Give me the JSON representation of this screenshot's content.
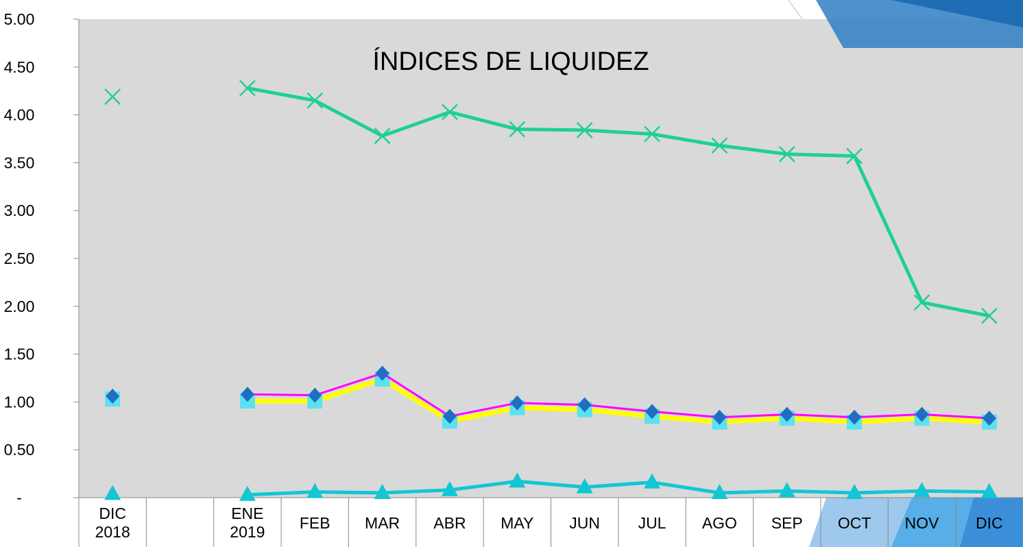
{
  "chart_data": {
    "type": "line",
    "title": "ÍNDICES DE LIQUIDEZ",
    "categories": [
      "DIC\n2018",
      null,
      "ENE\n2019",
      "FEB",
      "MAR",
      "ABR",
      "MAY",
      "JUN",
      "JUL",
      "AGO",
      "SEP",
      "OCT",
      "NOV",
      "DIC"
    ],
    "ylim": [
      0,
      5
    ],
    "yticks": [
      {
        "value": 0,
        "label": "-"
      },
      {
        "value": 0.5,
        "label": "0.50"
      },
      {
        "value": 1,
        "label": "1.00"
      },
      {
        "value": 1.5,
        "label": "1.50"
      },
      {
        "value": 2,
        "label": "2.00"
      },
      {
        "value": 2.5,
        "label": "2.50"
      },
      {
        "value": 3,
        "label": "3.00"
      },
      {
        "value": 3.5,
        "label": "3.50"
      },
      {
        "value": 4,
        "label": "4.00"
      },
      {
        "value": 4.5,
        "label": "4.50"
      },
      {
        "value": 5,
        "label": "5.00"
      }
    ],
    "grid": false,
    "series": [
      {
        "color": "#1fcf97",
        "marker": "x",
        "marker_color": "#1fcf97",
        "width": 5,
        "values": [
          4.19,
          null,
          4.28,
          4.15,
          3.78,
          4.03,
          3.85,
          3.84,
          3.8,
          3.68,
          3.59,
          3.57,
          2.04,
          1.9
        ]
      },
      {
        "color": "#ffff00",
        "marker": "square",
        "marker_color": "#5ce1f0",
        "width": 7,
        "values": [
          1.03,
          null,
          1.01,
          1.01,
          1.24,
          0.8,
          0.94,
          0.92,
          0.85,
          0.79,
          0.83,
          0.79,
          0.83,
          0.79
        ]
      },
      {
        "color": "#ff00ff",
        "marker": "diamond",
        "marker_color": "#1f6fc0",
        "width": 3,
        "values": [
          1.06,
          null,
          1.08,
          1.07,
          1.3,
          0.85,
          0.99,
          0.97,
          0.9,
          0.84,
          0.87,
          0.84,
          0.87,
          0.83
        ]
      },
      {
        "color": "#12c6d4",
        "marker": "triangle",
        "marker_color": "#12c6d4",
        "width": 5,
        "values": [
          0.04,
          null,
          0.03,
          0.06,
          0.05,
          0.08,
          0.17,
          0.11,
          0.16,
          0.05,
          0.07,
          0.05,
          0.07,
          0.06
        ]
      }
    ]
  }
}
